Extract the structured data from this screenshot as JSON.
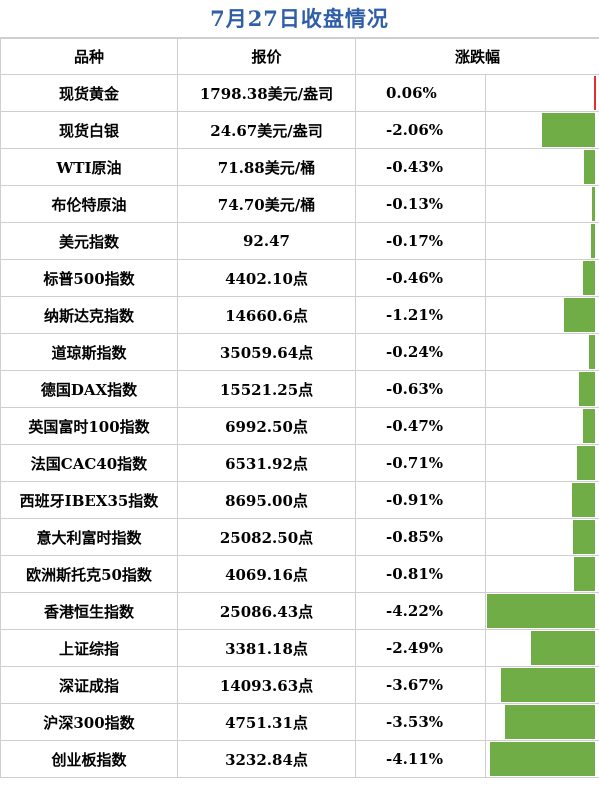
{
  "title": "7月27日收盘情况",
  "headers": {
    "name": "品种",
    "price": "报价",
    "change": "涨跌幅"
  },
  "colors": {
    "title": "#2f5ea8",
    "negative_bar": "#70ad47",
    "positive_bar": "#e03030"
  },
  "rows": [
    {
      "name": "现货黄金",
      "price": "1798.38美元/盎司",
      "change": "0.06%",
      "value": 0.06
    },
    {
      "name": "现货白银",
      "price": "24.67美元/盎司",
      "change": "-2.06%",
      "value": -2.06
    },
    {
      "name": "WTI原油",
      "price": "71.88美元/桶",
      "change": "-0.43%",
      "value": -0.43
    },
    {
      "name": "布伦特原油",
      "price": "74.70美元/桶",
      "change": "-0.13%",
      "value": -0.13
    },
    {
      "name": "美元指数",
      "price": "92.47",
      "change": "-0.17%",
      "value": -0.17
    },
    {
      "name": "标普500指数",
      "price": "4402.10点",
      "change": "-0.46%",
      "value": -0.46
    },
    {
      "name": "纳斯达克指数",
      "price": "14660.6点",
      "change": "-1.21%",
      "value": -1.21
    },
    {
      "name": "道琼斯指数",
      "price": "35059.64点",
      "change": "-0.24%",
      "value": -0.24
    },
    {
      "name": "德国DAX指数",
      "price": "15521.25点",
      "change": "-0.63%",
      "value": -0.63
    },
    {
      "name": "英国富时100指数",
      "price": "6992.50点",
      "change": "-0.47%",
      "value": -0.47
    },
    {
      "name": "法国CAC40指数",
      "price": "6531.92点",
      "change": "-0.71%",
      "value": -0.71
    },
    {
      "name": "西班牙IBEX35指数",
      "price": "8695.00点",
      "change": "-0.91%",
      "value": -0.91
    },
    {
      "name": "意大利富时指数",
      "price": "25082.50点",
      "change": "-0.85%",
      "value": -0.85
    },
    {
      "name": "欧洲斯托克50指数",
      "price": "4069.16点",
      "change": "-0.81%",
      "value": -0.81
    },
    {
      "name": "香港恒生指数",
      "price": "25086.43点",
      "change": "-4.22%",
      "value": -4.22
    },
    {
      "name": "上证综指",
      "price": "3381.18点",
      "change": "-2.49%",
      "value": -2.49
    },
    {
      "name": "深证成指",
      "price": "14093.63点",
      "change": "-3.67%",
      "value": -3.67
    },
    {
      "name": "沪深300指数",
      "price": "4751.31点",
      "change": "-3.53%",
      "value": -3.53
    },
    {
      "name": "创业板指数",
      "price": "3232.84点",
      "change": "-4.11%",
      "value": -4.11
    }
  ]
}
